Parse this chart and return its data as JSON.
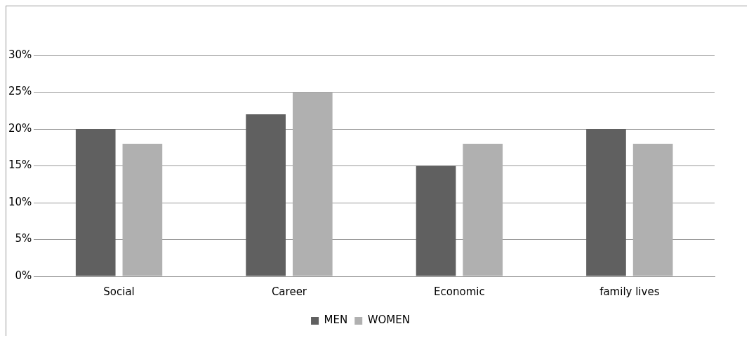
{
  "chart_data": {
    "type": "bar",
    "categories": [
      "Social",
      "Career",
      "Economic",
      "family lives"
    ],
    "series": [
      {
        "name": "MEN",
        "color": "#606060",
        "values": [
          20,
          22,
          15,
          20
        ]
      },
      {
        "name": "WOMEN",
        "color": "#b0b0b0",
        "values": [
          18,
          25,
          18,
          18
        ]
      }
    ],
    "ylim": [
      0,
      30
    ],
    "yticks": [
      {
        "value": 0,
        "label": "0%"
      },
      {
        "value": 5,
        "label": "5%"
      },
      {
        "value": 10,
        "label": "10%"
      },
      {
        "value": 15,
        "label": "15%"
      },
      {
        "value": 20,
        "label": "20%"
      },
      {
        "value": 25,
        "label": "25%"
      },
      {
        "value": 30,
        "label": "30%"
      }
    ],
    "grid": "y",
    "legend": "bottom"
  }
}
